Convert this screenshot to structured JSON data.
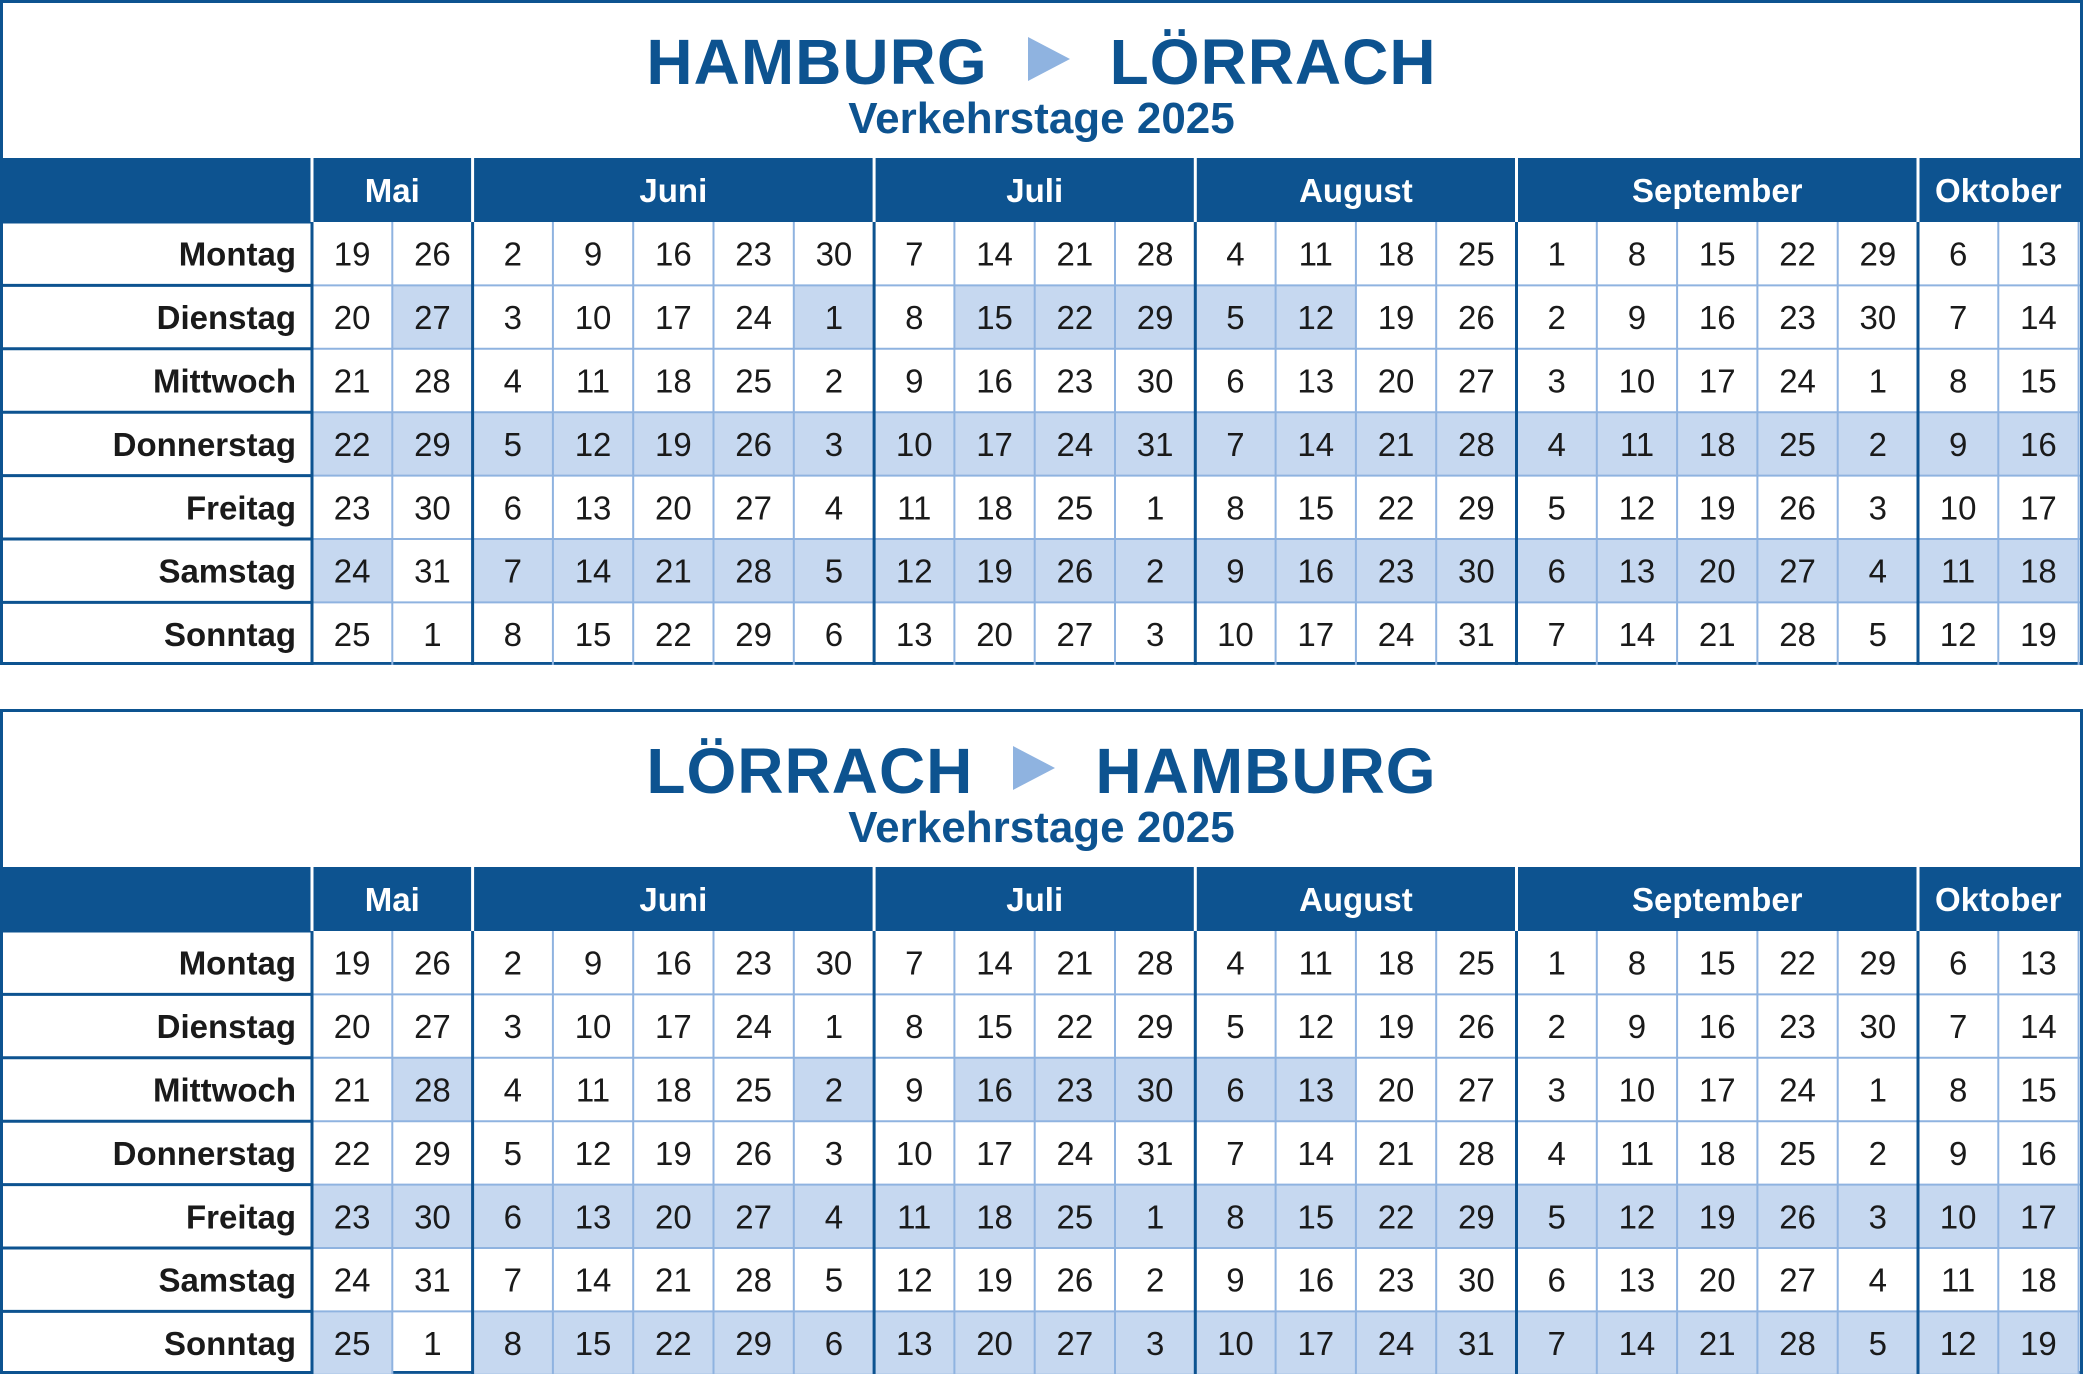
{
  "colors": {
    "navy": "#0d5390",
    "highlight": "#c6d8f0",
    "grid_line": "#8fb3e0",
    "arrow": "#8fb3e0"
  },
  "calendar": {
    "weekdays": [
      "Montag",
      "Dienstag",
      "Mittwoch",
      "Donnerstag",
      "Freitag",
      "Samstag",
      "Sonntag"
    ],
    "months": [
      {
        "name": "Mai",
        "weeks": 2
      },
      {
        "name": "Juni",
        "weeks": 5
      },
      {
        "name": "Juli",
        "weeks": 4
      },
      {
        "name": "August",
        "weeks": 4
      },
      {
        "name": "September",
        "weeks": 5
      },
      {
        "name": "Oktober",
        "weeks": 2
      }
    ],
    "week_columns": [
      [
        19,
        20,
        21,
        22,
        23,
        24,
        25
      ],
      [
        26,
        27,
        28,
        29,
        30,
        31,
        1
      ],
      [
        2,
        3,
        4,
        5,
        6,
        7,
        8
      ],
      [
        9,
        10,
        11,
        12,
        13,
        14,
        15
      ],
      [
        16,
        17,
        18,
        19,
        20,
        21,
        22
      ],
      [
        23,
        24,
        25,
        26,
        27,
        28,
        29
      ],
      [
        30,
        1,
        2,
        3,
        4,
        5,
        6
      ],
      [
        7,
        8,
        9,
        10,
        11,
        12,
        13
      ],
      [
        14,
        15,
        16,
        17,
        18,
        19,
        20
      ],
      [
        21,
        22,
        23,
        24,
        25,
        26,
        27
      ],
      [
        28,
        29,
        30,
        31,
        1,
        2,
        3
      ],
      [
        4,
        5,
        6,
        7,
        8,
        9,
        10
      ],
      [
        11,
        12,
        13,
        14,
        15,
        16,
        17
      ],
      [
        18,
        19,
        20,
        21,
        22,
        23,
        24
      ],
      [
        25,
        26,
        27,
        28,
        29,
        30,
        31
      ],
      [
        1,
        2,
        3,
        4,
        5,
        6,
        7
      ],
      [
        8,
        9,
        10,
        11,
        12,
        13,
        14
      ],
      [
        15,
        16,
        17,
        18,
        19,
        20,
        21
      ],
      [
        22,
        23,
        24,
        25,
        26,
        27,
        28
      ],
      [
        29,
        30,
        1,
        2,
        3,
        4,
        5
      ],
      [
        6,
        7,
        8,
        9,
        10,
        11,
        12
      ],
      [
        13,
        14,
        15,
        16,
        17,
        18,
        19
      ]
    ]
  },
  "timetables": [
    {
      "from": "HAMBURG",
      "to": "LÖRRACH",
      "subtitle": "Verkehrstage 2025",
      "highlighted": [
        [
          false,
          false,
          false,
          true,
          false,
          true,
          false
        ],
        [
          false,
          true,
          false,
          true,
          false,
          false,
          false
        ],
        [
          false,
          false,
          false,
          true,
          false,
          true,
          false
        ],
        [
          false,
          false,
          false,
          true,
          false,
          true,
          false
        ],
        [
          false,
          false,
          false,
          true,
          false,
          true,
          false
        ],
        [
          false,
          false,
          false,
          true,
          false,
          true,
          false
        ],
        [
          false,
          true,
          false,
          true,
          false,
          true,
          false
        ],
        [
          false,
          false,
          false,
          true,
          false,
          true,
          false
        ],
        [
          false,
          true,
          false,
          true,
          false,
          true,
          false
        ],
        [
          false,
          true,
          false,
          true,
          false,
          true,
          false
        ],
        [
          false,
          true,
          false,
          true,
          false,
          true,
          false
        ],
        [
          false,
          true,
          false,
          true,
          false,
          true,
          false
        ],
        [
          false,
          true,
          false,
          true,
          false,
          true,
          false
        ],
        [
          false,
          false,
          false,
          true,
          false,
          true,
          false
        ],
        [
          false,
          false,
          false,
          true,
          false,
          true,
          false
        ],
        [
          false,
          false,
          false,
          true,
          false,
          true,
          false
        ],
        [
          false,
          false,
          false,
          true,
          false,
          true,
          false
        ],
        [
          false,
          false,
          false,
          true,
          false,
          true,
          false
        ],
        [
          false,
          false,
          false,
          true,
          false,
          true,
          false
        ],
        [
          false,
          false,
          false,
          true,
          false,
          true,
          false
        ],
        [
          false,
          false,
          false,
          true,
          false,
          true,
          false
        ],
        [
          false,
          false,
          false,
          true,
          false,
          true,
          false
        ]
      ]
    },
    {
      "from": "LÖRRACH",
      "to": "HAMBURG",
      "subtitle": "Verkehrstage 2025",
      "highlighted": [
        [
          false,
          false,
          false,
          false,
          true,
          false,
          true
        ],
        [
          false,
          false,
          true,
          false,
          true,
          false,
          false
        ],
        [
          false,
          false,
          false,
          false,
          true,
          false,
          true
        ],
        [
          false,
          false,
          false,
          false,
          true,
          false,
          true
        ],
        [
          false,
          false,
          false,
          false,
          true,
          false,
          true
        ],
        [
          false,
          false,
          false,
          false,
          true,
          false,
          true
        ],
        [
          false,
          false,
          true,
          false,
          true,
          false,
          true
        ],
        [
          false,
          false,
          false,
          false,
          true,
          false,
          true
        ],
        [
          false,
          false,
          true,
          false,
          true,
          false,
          true
        ],
        [
          false,
          false,
          true,
          false,
          true,
          false,
          true
        ],
        [
          false,
          false,
          true,
          false,
          true,
          false,
          true
        ],
        [
          false,
          false,
          true,
          false,
          true,
          false,
          true
        ],
        [
          false,
          false,
          true,
          false,
          true,
          false,
          true
        ],
        [
          false,
          false,
          false,
          false,
          true,
          false,
          true
        ],
        [
          false,
          false,
          false,
          false,
          true,
          false,
          true
        ],
        [
          false,
          false,
          false,
          false,
          true,
          false,
          true
        ],
        [
          false,
          false,
          false,
          false,
          true,
          false,
          true
        ],
        [
          false,
          false,
          false,
          false,
          true,
          false,
          true
        ],
        [
          false,
          false,
          false,
          false,
          true,
          false,
          true
        ],
        [
          false,
          false,
          false,
          false,
          true,
          false,
          true
        ],
        [
          false,
          false,
          false,
          false,
          true,
          false,
          true
        ],
        [
          false,
          false,
          false,
          false,
          true,
          false,
          true
        ]
      ]
    }
  ]
}
